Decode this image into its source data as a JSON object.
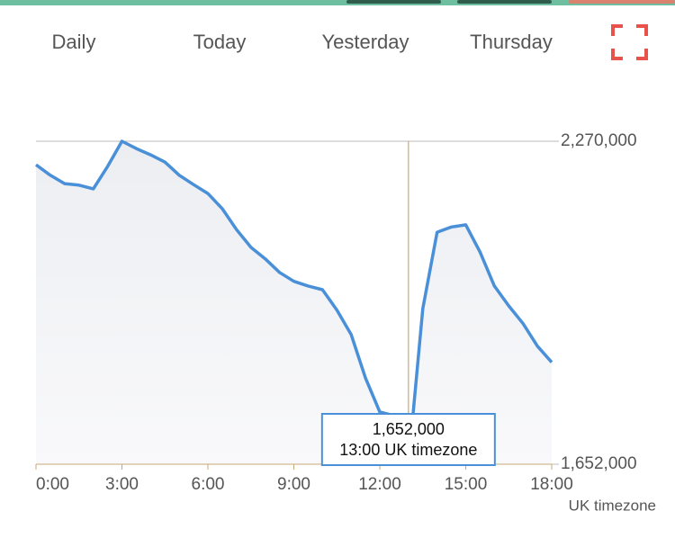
{
  "tabs": [
    "Daily",
    "Today",
    "Yesterday",
    "Thursday"
  ],
  "chart_data": {
    "type": "line",
    "x": [
      0,
      0.5,
      1,
      1.5,
      2,
      2.5,
      3,
      3.5,
      4,
      4.5,
      5,
      5.5,
      6,
      6.5,
      7,
      7.5,
      8,
      8.5,
      9,
      9.5,
      10,
      10.5,
      11,
      11.5,
      12,
      12.5,
      13,
      13.5,
      14,
      14.5,
      15,
      15.5,
      16,
      16.5,
      17,
      17.5,
      18
    ],
    "series": [
      {
        "color": "#4a90d9",
        "values": [
          2225000,
          2205000,
          2189000,
          2186000,
          2179000,
          2222000,
          2270000,
          2256000,
          2244000,
          2230000,
          2205000,
          2187000,
          2170000,
          2141000,
          2101000,
          2067000,
          2045000,
          2019000,
          2002000,
          1993000,
          1986000,
          1947000,
          1900000,
          1817000,
          1752000,
          1745000,
          1652000,
          1950000,
          2096000,
          2106000,
          2110000,
          2058000,
          1993000,
          1955000,
          1921000,
          1878000,
          1847000
        ]
      }
    ],
    "xlim": [
      0,
      18
    ],
    "ylim": [
      1652000,
      2270000
    ],
    "xticks": [
      {
        "value": 0,
        "label": "0:00"
      },
      {
        "value": 3,
        "label": "3:00"
      },
      {
        "value": 6,
        "label": "6:00"
      },
      {
        "value": 9,
        "label": "9:00"
      },
      {
        "value": 12,
        "label": "12:00"
      },
      {
        "value": 15,
        "label": "15:00"
      },
      {
        "value": 18,
        "label": "18:00"
      }
    ],
    "yticks": [
      {
        "value": 1652000,
        "label": "1,652,000"
      },
      {
        "value": 2270000,
        "label": "2,270,000"
      }
    ],
    "xlabel": "UK timezone",
    "crosshair_x": 13,
    "tooltip": {
      "value_label": "1,652,000",
      "time_label": "13:00 UK timezone"
    }
  }
}
